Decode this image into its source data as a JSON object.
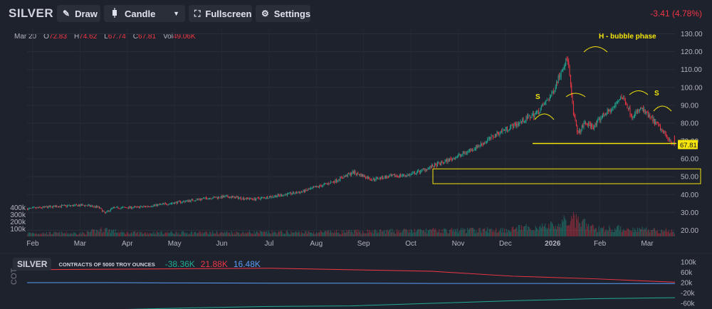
{
  "toolbar": {
    "symbol": "SILVER",
    "draw_label": "Draw",
    "charttype_label": "Candle",
    "fullscreen_label": "Fullscreen",
    "settings_label": "Settings",
    "change": "-3.41 (4.78%)"
  },
  "ohlc": {
    "date": "Mar 20",
    "o_label": "O",
    "o": "72.83",
    "h_label": "H",
    "h": "74.62",
    "l_label": "L",
    "l": "67.74",
    "c_label": "C",
    "c": "67.81",
    "vol_label": "Vol",
    "vol": "49.06K"
  },
  "annotations": {
    "bubble": "H - bubble phase",
    "left_shoulder": "S",
    "right_shoulder": "S",
    "last_price": "67.81"
  },
  "cot": {
    "symbol": "SILVER",
    "description": "CONTRACTS OF 5000 TROY OUNCES",
    "v1": "-38.36K",
    "v2": "21.88K",
    "v3": "16.48K",
    "axis_label": "COT"
  },
  "colors": {
    "up": "#22ab94",
    "down": "#f23645",
    "cot_green": "#22ab94",
    "cot_red": "#f23645",
    "cot_blue": "#5b9cf6",
    "annotation": "#f5e50a"
  },
  "chart_data": {
    "type": "candlestick",
    "price_axis": {
      "ticks": [
        20,
        30,
        40,
        50,
        60,
        70,
        80,
        90,
        100,
        110,
        120,
        130
      ],
      "range": [
        15,
        133
      ]
    },
    "volume_axis": {
      "ticks": [
        "100k",
        "200k",
        "300k",
        "400k"
      ],
      "range_k": [
        0,
        500
      ]
    },
    "x_axis_labels": [
      "Feb",
      "Mar",
      "Apr",
      "May",
      "Jun",
      "Jul",
      "Aug",
      "Sep",
      "Oct",
      "Nov",
      "Dec",
      "2026",
      "Feb",
      "Mar"
    ],
    "price_path": [
      [
        0,
        32.0
      ],
      [
        32,
        33.5
      ],
      [
        60,
        34.0
      ],
      [
        75,
        33.0
      ],
      [
        82,
        29.5
      ],
      [
        90,
        32.5
      ],
      [
        120,
        33.0
      ],
      [
        150,
        35.0
      ],
      [
        170,
        36.5
      ],
      [
        190,
        38.0
      ],
      [
        210,
        38.8
      ],
      [
        240,
        37.5
      ],
      [
        260,
        39.0
      ],
      [
        290,
        41.5
      ],
      [
        308,
        44.5
      ],
      [
        325,
        47.5
      ],
      [
        345,
        52.5
      ],
      [
        355,
        50.5
      ],
      [
        365,
        48.5
      ],
      [
        375,
        49.5
      ],
      [
        390,
        50.5
      ],
      [
        405,
        51.0
      ],
      [
        420,
        54.0
      ],
      [
        440,
        58.0
      ],
      [
        460,
        62.5
      ],
      [
        480,
        68.0
      ],
      [
        500,
        75.0
      ],
      [
        520,
        80.0
      ],
      [
        540,
        86.0
      ],
      [
        555,
        96.0
      ],
      [
        567,
        112.0
      ],
      [
        572,
        116.0
      ],
      [
        578,
        85.0
      ],
      [
        583,
        74.0
      ],
      [
        590,
        80.0
      ],
      [
        600,
        78.0
      ],
      [
        610,
        85.0
      ],
      [
        620,
        88.0
      ],
      [
        628,
        95.0
      ],
      [
        633,
        92.0
      ],
      [
        640,
        84.0
      ],
      [
        650,
        88.0
      ],
      [
        665,
        80.0
      ],
      [
        678,
        72.0
      ],
      [
        685,
        67.8
      ]
    ],
    "volume_profile_k": [
      [
        0,
        45
      ],
      [
        60,
        45
      ],
      [
        82,
        100
      ],
      [
        100,
        50
      ],
      [
        300,
        55
      ],
      [
        400,
        75
      ],
      [
        500,
        90
      ],
      [
        560,
        150
      ],
      [
        576,
        240
      ],
      [
        600,
        110
      ],
      [
        650,
        100
      ],
      [
        685,
        70
      ]
    ],
    "last_price": 67.81,
    "support_level": 68.6,
    "range_box": [
      46.5,
      54.0
    ],
    "cot_axis": {
      "ticks": [
        "100k",
        "60k",
        "20k",
        "-20k",
        "-60k"
      ]
    },
    "cot_series": [
      {
        "name": "-38.36K",
        "values": [
          -90,
          -85,
          -78,
          -72,
          -70,
          -60,
          -50,
          -42,
          -38.36
        ]
      },
      {
        "name": "21.88K",
        "values": [
          70,
          72,
          74,
          76,
          70,
          64,
          45,
          35,
          21.88
        ]
      },
      {
        "name": "16.48K",
        "values": [
          20,
          20,
          19,
          18,
          18,
          17,
          17,
          16.5,
          16.48
        ]
      }
    ]
  }
}
